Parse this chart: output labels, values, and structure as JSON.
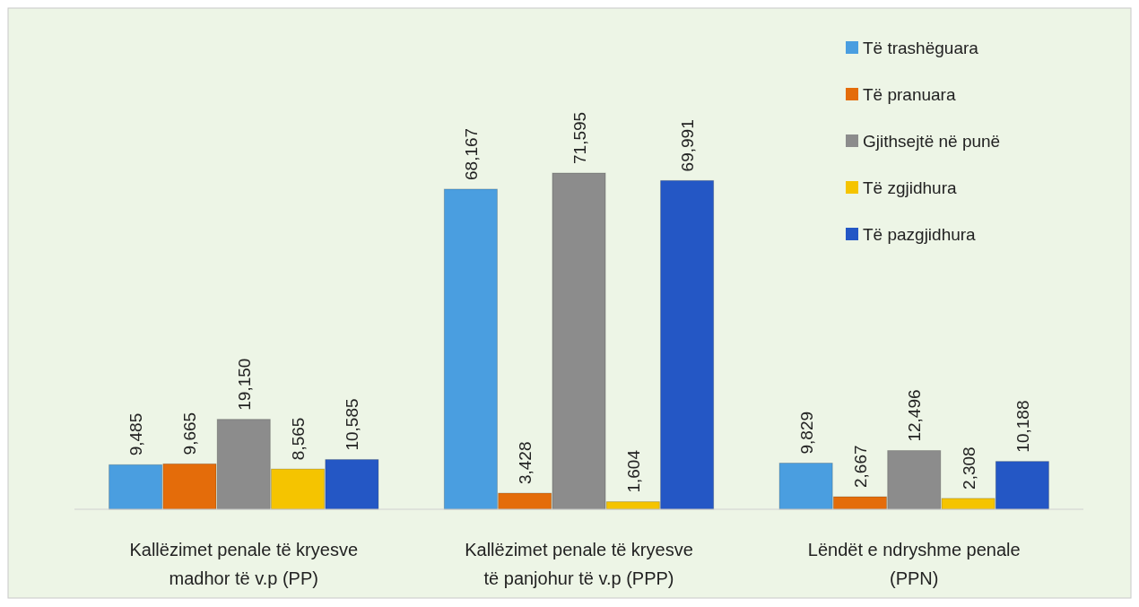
{
  "chart_data": {
    "type": "bar",
    "categories": [
      "Kallëzimet penale të kryesve madhor të v.p (PP)",
      "Kallëzimet penale të kryesve të panjohur të v.p (PPP)",
      "Lëndët e ndryshme penale (PPN)"
    ],
    "series": [
      {
        "name": "Të trashëguara",
        "color": "#4a9ee0",
        "values": [
          9485,
          68167,
          9829
        ],
        "value_labels": [
          "9,485",
          "68,167",
          "9,829"
        ]
      },
      {
        "name": "Të pranuara",
        "color": "#e46c0a",
        "values": [
          9665,
          3428,
          2667
        ],
        "value_labels": [
          "9,665",
          "3,428",
          "2,667"
        ]
      },
      {
        "name": "Gjithsejtë në punë",
        "color": "#8c8c8c",
        "values": [
          19150,
          71595,
          12496
        ],
        "value_labels": [
          "19,150",
          "71,595",
          "12,496"
        ]
      },
      {
        "name": "Të zgjidhura",
        "color": "#f5c400",
        "values": [
          8565,
          1604,
          2308
        ],
        "value_labels": [
          "8,565",
          "1,604",
          "2,308"
        ]
      },
      {
        "name": "Të pazgjidhura",
        "color": "#2457c5",
        "values": [
          10585,
          69991,
          10188
        ],
        "value_labels": [
          "10,585",
          "69,991",
          "10,188"
        ]
      }
    ],
    "legend": "top right"
  }
}
